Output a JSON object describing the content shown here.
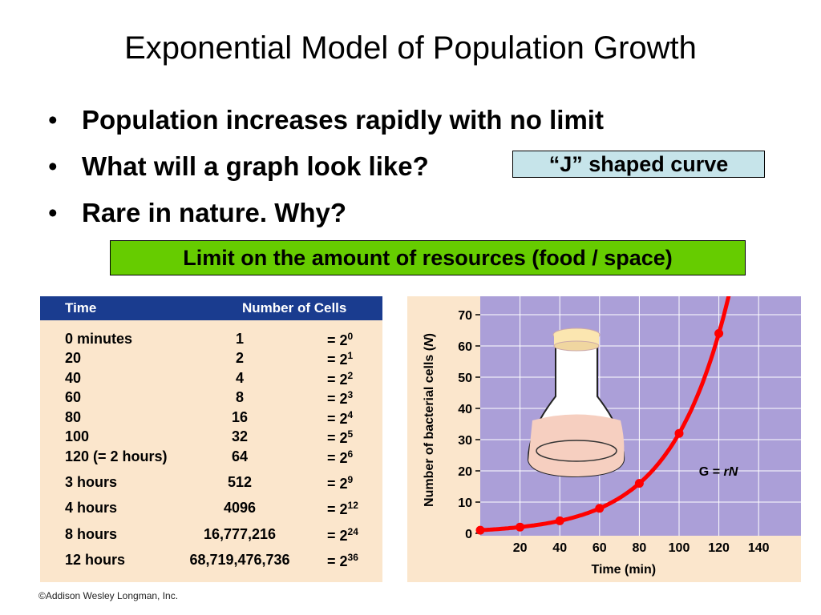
{
  "slide": {
    "title": "Exponential Model of Population Growth",
    "bullets": [
      "Population increases rapidly with no limit",
      "What will a graph look like?",
      "Rare in nature.  Why?"
    ],
    "bullet_symbol": "•",
    "answer_j": "“J” shaped curve",
    "answer_limit": "Limit on the amount of resources (food / space)",
    "copyright": "©Addison Wesley Longman, Inc."
  },
  "table": {
    "headers": [
      "Time",
      "Number of Cells"
    ],
    "rows": [
      {
        "time": "0 minutes",
        "cells": "1",
        "eq": "= 2",
        "exp": "0"
      },
      {
        "time": "20",
        "cells": "2",
        "eq": "= 2",
        "exp": "1"
      },
      {
        "time": "40",
        "cells": "4",
        "eq": "= 2",
        "exp": "2"
      },
      {
        "time": "60",
        "cells": "8",
        "eq": "= 2",
        "exp": "3"
      },
      {
        "time": "80",
        "cells": "16",
        "eq": "= 2",
        "exp": "4"
      },
      {
        "time": "100",
        "cells": "32",
        "eq": "= 2",
        "exp": "5"
      },
      {
        "time": "120 (= 2 hours)",
        "cells": "64",
        "eq": "= 2",
        "exp": "6"
      },
      {
        "time": "3 hours",
        "cells": "512",
        "eq": "= 2",
        "exp": "9"
      },
      {
        "time": "4 hours",
        "cells": "4096",
        "eq": "= 2",
        "exp": "12"
      },
      {
        "time": "8 hours",
        "cells": "16,777,216",
        "eq": "= 2",
        "exp": "24"
      },
      {
        "time": "12 hours",
        "cells": "68,719,476,736",
        "eq": "= 2",
        "exp": "36"
      }
    ],
    "header_color": "#1a3c8f",
    "panel_color": "#fbe6cc"
  },
  "chart_data": {
    "type": "line",
    "title": "",
    "xlabel": "Time (min)",
    "ylabel": "Number of bacterial cells (N)",
    "xlim": [
      0,
      160
    ],
    "ylim": [
      0,
      75
    ],
    "xticks": [
      20,
      40,
      60,
      80,
      100,
      120,
      140
    ],
    "yticks": [
      0,
      10,
      20,
      30,
      40,
      50,
      60,
      70
    ],
    "grid": true,
    "annotation": "G = rN",
    "series": [
      {
        "x": [
          0,
          20,
          40,
          60,
          80,
          100,
          120
        ],
        "values": [
          1,
          2,
          4,
          8,
          16,
          32,
          64
        ],
        "color": "#ff0000"
      }
    ],
    "plot_background": "#ab9fd8",
    "panel_background": "#fbe6cc"
  }
}
